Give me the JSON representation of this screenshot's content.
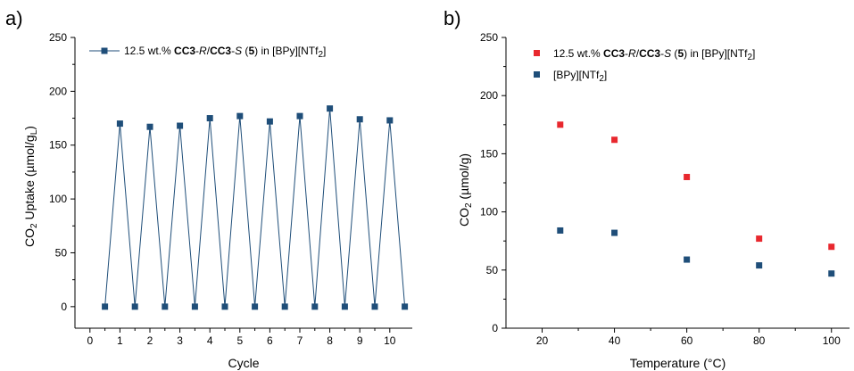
{
  "colors": {
    "series_blue": "#1f4e79",
    "series_red": "#e8282e",
    "axis": "#000000"
  },
  "chart_data": [
    {
      "panel_label": "a)",
      "type": "line",
      "xlabel": "Cycle",
      "ylabel_parts": {
        "a": "CO",
        "sub": "2",
        "b": " Uptake (µmol/g",
        "sub2": "L",
        "c": ")"
      },
      "xlim": [
        -0.5,
        10.75
      ],
      "ylim": [
        -20,
        250
      ],
      "xticks": [
        0,
        1,
        2,
        3,
        4,
        5,
        6,
        7,
        8,
        9,
        10
      ],
      "yticks": [
        0,
        50,
        100,
        150,
        200,
        250
      ],
      "legend_position": "top-left",
      "series": [
        {
          "legend_parts": {
            "pre": "12.5 wt.% ",
            "b1": "CC3",
            "n1": "-",
            "i1": "R",
            "n2": "/",
            "b2": "CC3",
            "n3": "-",
            "i2": "S",
            "n4": " (",
            "b3": "5",
            "n5": ") in [BPy][NTf",
            "sub": "2",
            "n6": "]"
          },
          "color": "#1f4e79",
          "x": [
            0.5,
            1,
            1.5,
            2,
            2.5,
            3,
            3.5,
            4,
            4.5,
            5,
            5.5,
            6,
            6.5,
            7,
            7.5,
            8,
            8.5,
            9,
            9.5,
            10,
            10.5
          ],
          "y": [
            0,
            170,
            0,
            167,
            0,
            168,
            0,
            175,
            0,
            177,
            0,
            172,
            0,
            177,
            0,
            184,
            0,
            174,
            0,
            173,
            0
          ]
        }
      ]
    },
    {
      "panel_label": "b)",
      "type": "scatter",
      "xlabel": "Temperature (°C)",
      "ylabel_parts": {
        "a": "CO",
        "sub": "2",
        "b": " (µmol/g)"
      },
      "xlim": [
        10,
        105
      ],
      "ylim": [
        0,
        250
      ],
      "xticks": [
        20,
        40,
        60,
        80,
        100
      ],
      "yticks": [
        0,
        50,
        100,
        150,
        200,
        250
      ],
      "legend_position": "top-left",
      "series": [
        {
          "legend_parts": {
            "pre": "12.5 wt.% ",
            "b1": "CC3",
            "n1": "-",
            "i1": "R",
            "n2": "/",
            "b2": "CC3",
            "n3": "-",
            "i2": "S",
            "n4": " (",
            "b3": "5",
            "n5": ") in [BPy][NTf",
            "sub": "2",
            "n6": "]"
          },
          "color": "#e8282e",
          "x": [
            25,
            40,
            60,
            80,
            100
          ],
          "y": [
            175,
            162,
            130,
            77,
            70
          ]
        },
        {
          "legend_parts": {
            "pre": "[BPy][NTf",
            "sub": "2",
            "post": "]"
          },
          "color": "#1f4e79",
          "x": [
            25,
            40,
            60,
            80,
            100
          ],
          "y": [
            84,
            82,
            59,
            54,
            47
          ]
        }
      ]
    }
  ]
}
